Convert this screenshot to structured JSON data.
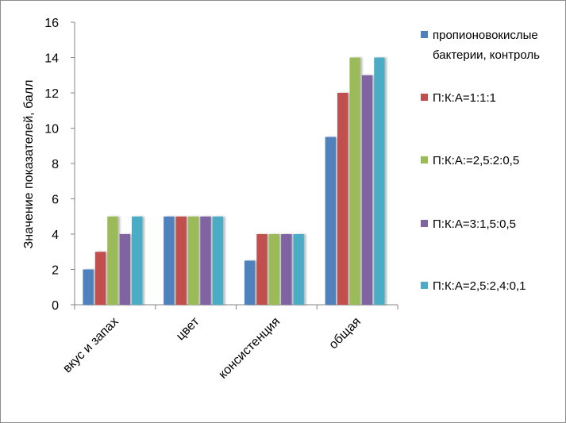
{
  "chart_data": {
    "type": "bar",
    "title": "",
    "xlabel": "",
    "ylabel": "Значение показателей, балл",
    "ylim": [
      0,
      16
    ],
    "yticks": [
      0,
      2,
      4,
      6,
      8,
      10,
      12,
      14,
      16
    ],
    "grid": false,
    "legend_position": "right",
    "categories": [
      "вкус и запах",
      "цвет",
      "консистенция",
      "общая"
    ],
    "series": [
      {
        "name": "пропионовокислые бактерии, контроль",
        "color": "#4f81bd",
        "values": [
          2,
          5,
          2.5,
          9.5
        ]
      },
      {
        "name": "П:К:А=1:1:1",
        "color": "#c0504d",
        "values": [
          3,
          5,
          4,
          12
        ]
      },
      {
        "name": "П:К:А:=2,5:2:0,5",
        "color": "#9bbb59",
        "values": [
          5,
          5,
          4,
          14
        ]
      },
      {
        "name": "П:К:А=3:1,5:0,5",
        "color": "#8064a2",
        "values": [
          4,
          5,
          4,
          13
        ]
      },
      {
        "name": "П:К:А=2,5:2,4:0,1",
        "color": "#4bacc6",
        "values": [
          5,
          5,
          4,
          14
        ]
      }
    ]
  }
}
